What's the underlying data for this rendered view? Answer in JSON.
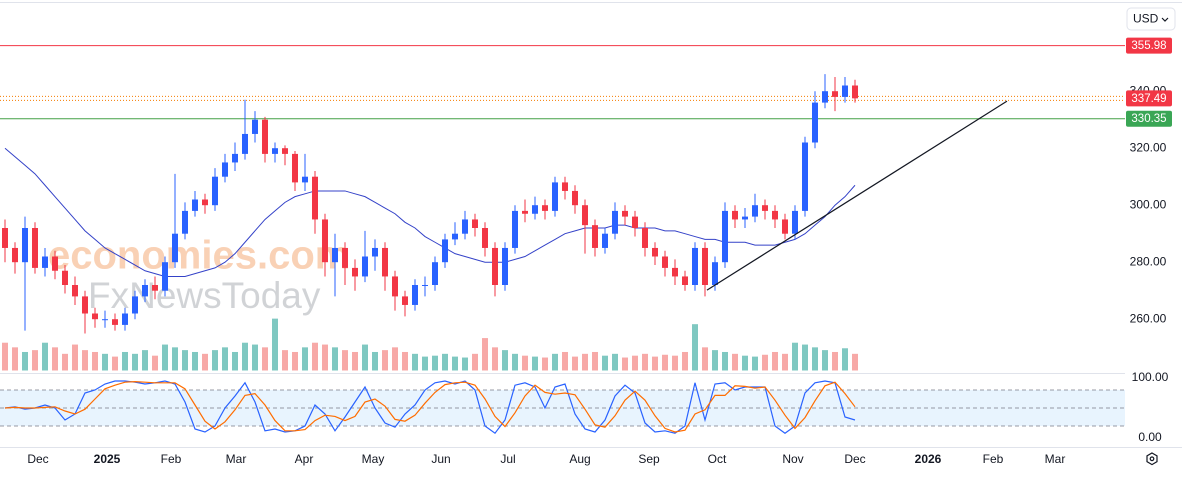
{
  "chart_data": {
    "type": "candlestick",
    "currency": "USD",
    "watermark": [
      "economies.com",
      "FxNewsToday"
    ],
    "up_color": "#2962ff",
    "down_color": "#f23645",
    "xlim": [
      -0.5,
      111.5
    ],
    "xticks": [
      {
        "value": 3.3,
        "label": "Dec"
      },
      {
        "value": 10.2,
        "label": "2025"
      },
      {
        "value": 16.6,
        "label": "Feb"
      },
      {
        "value": 23.1,
        "label": "Mar"
      },
      {
        "value": 29.9,
        "label": "Apr"
      },
      {
        "value": 36.8,
        "label": "May"
      },
      {
        "value": 43.6,
        "label": "Jun"
      },
      {
        "value": 50.3,
        "label": "Jul"
      },
      {
        "value": 57.5,
        "label": "Aug"
      },
      {
        "value": 64.4,
        "label": "Sep"
      },
      {
        "value": 71.2,
        "label": "Oct"
      },
      {
        "value": 78.8,
        "label": "Nov"
      },
      {
        "value": 85,
        "label": "Dec"
      },
      {
        "value": 92.3,
        "label": "2026"
      },
      {
        "value": 98.8,
        "label": "Feb"
      },
      {
        "value": 105,
        "label": "Mar"
      }
    ],
    "ylim": [
      242,
      372
    ],
    "yticks": [
      {
        "value": 260,
        "label": "260.00"
      },
      {
        "value": 280,
        "label": "280.00"
      },
      {
        "value": 300,
        "label": "300.00"
      },
      {
        "value": 320,
        "label": "320.00"
      },
      {
        "value": 340,
        "label": "340.00"
      }
    ],
    "open": [
      292,
      285,
      280,
      292,
      278,
      282,
      277,
      272,
      268,
      262,
      260,
      260,
      258,
      262,
      268,
      272,
      270,
      280,
      290,
      298,
      302,
      300,
      310,
      315,
      318,
      325,
      330,
      318,
      320,
      318,
      308,
      310,
      295,
      280,
      285,
      278,
      275,
      282,
      285,
      275,
      268,
      265,
      272,
      272,
      280,
      288,
      290,
      295,
      292,
      285,
      272,
      285,
      298,
      297,
      300,
      298,
      308,
      305,
      300,
      293,
      285,
      290,
      298,
      296,
      292,
      285,
      282,
      278,
      275,
      272,
      285,
      272,
      280,
      298,
      295,
      296,
      300,
      298,
      295,
      290,
      298,
      322,
      336,
      340,
      338,
      342
    ],
    "high": [
      295,
      287,
      296,
      294,
      285,
      284,
      279,
      275,
      270,
      264,
      263,
      262,
      264,
      270,
      274,
      275,
      282,
      311,
      301,
      305,
      304,
      313,
      318,
      322,
      337,
      333,
      331,
      322,
      321,
      319,
      318,
      312,
      297,
      290,
      287,
      281,
      291,
      288,
      287,
      277,
      270,
      274,
      275,
      282,
      290,
      294,
      298,
      297,
      294,
      287,
      287,
      300,
      302,
      303,
      302,
      310,
      310,
      307,
      302,
      295,
      292,
      301,
      300,
      298,
      294,
      287,
      284,
      281,
      277,
      287,
      287,
      282,
      301,
      300,
      299,
      304,
      302,
      300,
      297,
      300,
      324,
      340,
      346,
      345,
      345,
      344
    ],
    "low": [
      280,
      276,
      256,
      276,
      275,
      274,
      269,
      265,
      255,
      257,
      257,
      256,
      256,
      260,
      266,
      267,
      268,
      278,
      288,
      296,
      297,
      298,
      308,
      312,
      316,
      322,
      315,
      315,
      314,
      305,
      305,
      290,
      275,
      268,
      272,
      270,
      273,
      277,
      270,
      263,
      261,
      263,
      268,
      270,
      278,
      286,
      288,
      289,
      282,
      268,
      270,
      283,
      294,
      295,
      295,
      296,
      302,
      297,
      283,
      282,
      283,
      288,
      293,
      289,
      282,
      279,
      275,
      272,
      270,
      270,
      268,
      270,
      278,
      292,
      292,
      294,
      295,
      292,
      288,
      288,
      296,
      320,
      334,
      333,
      336,
      336
    ],
    "close": [
      285,
      280,
      292,
      278,
      282,
      277,
      272,
      268,
      262,
      260,
      260,
      258,
      262,
      268,
      272,
      270,
      280,
      290,
      298,
      302,
      300,
      310,
      315,
      318,
      325,
      330,
      318,
      320,
      318,
      308,
      310,
      295,
      280,
      285,
      278,
      275,
      282,
      285,
      275,
      268,
      265,
      272,
      272,
      280,
      288,
      290,
      295,
      292,
      285,
      272,
      285,
      298,
      297,
      300,
      298,
      308,
      305,
      300,
      293,
      285,
      290,
      298,
      296,
      292,
      285,
      282,
      278,
      275,
      272,
      285,
      272,
      280,
      298,
      295,
      296,
      300,
      298,
      295,
      290,
      298,
      322,
      336,
      340,
      338,
      342,
      337.49
    ],
    "volume": {
      "ylim": [
        0,
        400
      ],
      "up_color": "#7fc8c1",
      "down_color": "#f7a9a7",
      "values": [
        30,
        25,
        20,
        22,
        30,
        25,
        18,
        28,
        22,
        20,
        18,
        15,
        20,
        18,
        22,
        16,
        28,
        25,
        22,
        20,
        18,
        22,
        25,
        20,
        30,
        28,
        25,
        56,
        22,
        20,
        25,
        30,
        28,
        25,
        22,
        20,
        28,
        20,
        22,
        25,
        20,
        18,
        15,
        16,
        18,
        15,
        14,
        18,
        35,
        25,
        22,
        18,
        16,
        15,
        14,
        18,
        20,
        15,
        18,
        20,
        16,
        18,
        14,
        16,
        18,
        15,
        17,
        16,
        20,
        50,
        25,
        22,
        20,
        18,
        16,
        15,
        17,
        20,
        18,
        30,
        28,
        25,
        22,
        20,
        24,
        18
      ]
    },
    "moving_average": {
      "color": "#3442c8",
      "values": [
        320,
        317,
        314,
        311,
        307,
        303,
        299,
        295,
        291,
        288,
        285,
        283,
        281,
        279,
        277,
        276,
        275,
        275,
        275,
        276,
        277,
        278,
        280,
        283,
        287,
        291,
        295,
        298,
        301,
        303,
        304,
        305,
        305,
        305,
        305,
        304,
        303,
        301,
        299,
        297,
        294,
        292,
        289,
        287,
        285,
        283,
        282,
        281,
        280,
        280,
        280,
        281,
        282,
        284,
        286,
        288,
        290,
        291,
        292,
        292,
        292,
        293,
        293,
        292,
        292,
        292,
        291,
        291,
        290,
        289,
        288,
        288,
        287,
        287,
        287,
        286,
        286,
        286,
        287,
        288,
        290,
        293,
        296,
        300,
        303,
        307
      ]
    },
    "levels": [
      {
        "value": 355.98,
        "color": "#f23645",
        "tag_color": "#f23645",
        "style": "solid"
      },
      {
        "value": 337.49,
        "color": "#f57c00",
        "tag_color": "#f23645",
        "style": "dotted"
      },
      {
        "value": 330.35,
        "color": "#43a047",
        "tag_color": "#3aa655",
        "style": "solid"
      }
    ],
    "trendline": {
      "x": [
        70.2,
        100.2
      ],
      "y": [
        270.2,
        336.5
      ],
      "color": "#131722"
    },
    "stochastic": {
      "ylim": [
        0,
        100
      ],
      "yticks": [
        {
          "value": 0,
          "label": "0.00"
        },
        {
          "value": 100,
          "label": "100.00"
        }
      ],
      "levels": [
        20,
        50,
        80
      ],
      "series": [
        {
          "color": "#2962ff",
          "values": [
            50,
            52,
            48,
            50,
            55,
            50,
            30,
            40,
            75,
            80,
            90,
            95,
            95,
            93,
            90,
            92,
            95,
            90,
            60,
            15,
            10,
            20,
            50,
            70,
            92,
            60,
            12,
            15,
            10,
            12,
            20,
            55,
            40,
            12,
            35,
            60,
            85,
            50,
            25,
            18,
            40,
            55,
            80,
            92,
            95,
            90,
            95,
            80,
            20,
            8,
            30,
            88,
            92,
            85,
            50,
            85,
            90,
            40,
            15,
            10,
            30,
            70,
            88,
            75,
            25,
            10,
            12,
            8,
            20,
            92,
            30,
            90,
            92,
            80,
            85,
            85,
            85,
            20,
            8,
            20,
            75,
            92,
            95,
            92,
            35,
            30
          ]
        },
        {
          "color": "#ff6d00",
          "values": [
            50,
            51,
            50,
            50,
            51,
            52,
            45,
            40,
            48,
            65,
            82,
            88,
            93,
            94,
            93,
            92,
            92,
            92,
            82,
            55,
            28,
            15,
            27,
            47,
            71,
            74,
            55,
            29,
            12,
            12,
            14,
            29,
            38,
            36,
            29,
            36,
            60,
            65,
            53,
            31,
            28,
            38,
            58,
            76,
            89,
            92,
            93,
            88,
            65,
            36,
            19,
            42,
            70,
            88,
            76,
            73,
            75,
            72,
            48,
            22,
            18,
            37,
            63,
            78,
            63,
            37,
            16,
            10,
            13,
            40,
            47,
            71,
            71,
            87,
            86,
            83,
            85,
            63,
            38,
            16,
            34,
            62,
            87,
            93,
            74,
            52
          ]
        }
      ]
    }
  }
}
